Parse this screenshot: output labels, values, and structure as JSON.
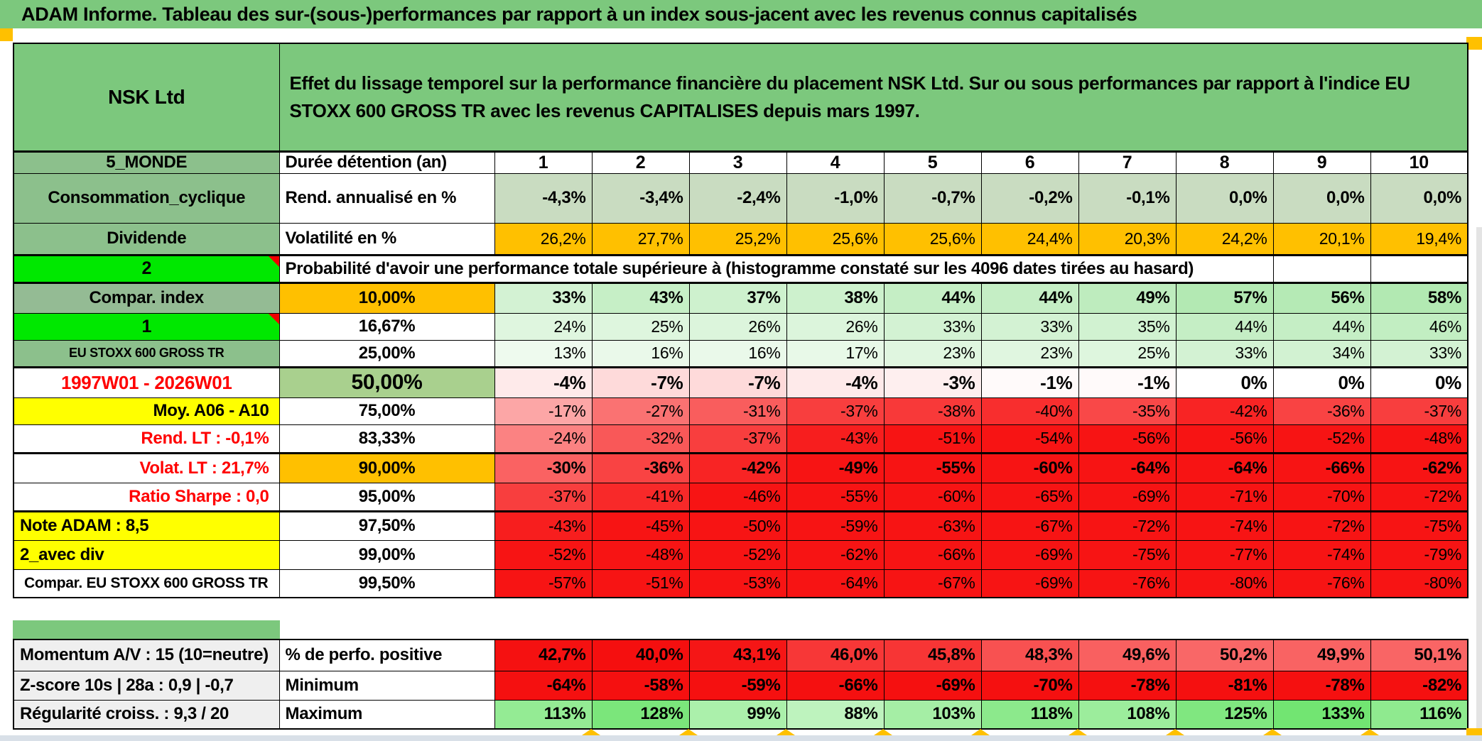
{
  "title": "ADAM Informe. Tableau des sur-(sous-)performances par rapport à un index sous-jacent avec les revenus connus capitalisés",
  "header": {
    "company": "NSK Ltd",
    "description": "Effet du lissage temporel sur la performance financière du placement NSK Ltd. Sur ou sous performances par rapport à l'indice EU STOXX 600 GROSS TR avec les revenus CAPITALISES depuis mars 1997."
  },
  "columns_row": {
    "label": "5_MONDE",
    "metric": "Durée détention (an)",
    "values": [
      "1",
      "2",
      "3",
      "4",
      "5",
      "6",
      "7",
      "8",
      "9",
      "10"
    ]
  },
  "metrics_rows": [
    {
      "label": "Consommation_cyclique",
      "metric": "Rend. annualisé en %",
      "style": "sage",
      "bold": true,
      "values": [
        "-4,3%",
        "-3,4%",
        "-2,4%",
        "-1,0%",
        "-0,7%",
        "-0,2%",
        "-0,1%",
        "0,0%",
        "0,0%",
        "0,0%"
      ]
    },
    {
      "label": "Dividende",
      "metric": "Volatilité en %",
      "style": "orange",
      "bold": false,
      "values": [
        "26,2%",
        "27,7%",
        "25,2%",
        "25,6%",
        "25,6%",
        "24,4%",
        "20,3%",
        "24,2%",
        "20,1%",
        "19,4%"
      ]
    }
  ],
  "probability": {
    "corner_label": "2",
    "caption": "Probabilité d'avoir une performance totale supérieure à (histogramme constaté sur les 4096 dates tirées au hasard)",
    "rows": [
      {
        "label": "Compar. index",
        "label_style": "graygreen",
        "threshold": "10,00%",
        "threshold_style": "orange",
        "bold": true,
        "values": [
          "33%",
          "43%",
          "37%",
          "38%",
          "44%",
          "44%",
          "49%",
          "57%",
          "56%",
          "58%"
        ]
      },
      {
        "label": "1",
        "label_style": "bright",
        "threshold": "16,67%",
        "threshold_style": "plain",
        "bold": false,
        "values": [
          "24%",
          "25%",
          "26%",
          "26%",
          "33%",
          "33%",
          "35%",
          "44%",
          "44%",
          "46%"
        ]
      },
      {
        "label": "EU STOXX 600 GROSS TR",
        "label_style": "labsmall",
        "threshold": "25,00%",
        "threshold_style": "plain",
        "bold": false,
        "values": [
          "13%",
          "16%",
          "16%",
          "17%",
          "23%",
          "23%",
          "25%",
          "33%",
          "34%",
          "33%"
        ]
      },
      {
        "label": "1997W01 - 2026W01",
        "label_style": "redcenter",
        "threshold": "50,00%",
        "threshold_style": "biggreen",
        "bold": true,
        "big": true,
        "values": [
          "-4%",
          "-7%",
          "-7%",
          "-4%",
          "-3%",
          "-1%",
          "-1%",
          "0%",
          "0%",
          "0%"
        ]
      },
      {
        "label": "Moy. A06 - A10",
        "label_style": "yellowright",
        "threshold": "75,00%",
        "threshold_style": "plain",
        "bold": false,
        "values": [
          "-17%",
          "-27%",
          "-31%",
          "-37%",
          "-38%",
          "-40%",
          "-35%",
          "-42%",
          "-36%",
          "-37%"
        ]
      },
      {
        "label": "Rend. LT :   -0,1%",
        "label_style": "redright",
        "threshold": "83,33%",
        "threshold_style": "plain",
        "bold": false,
        "values": [
          "-24%",
          "-32%",
          "-37%",
          "-43%",
          "-51%",
          "-54%",
          "-56%",
          "-56%",
          "-52%",
          "-48%"
        ]
      },
      {
        "label": "Volat. LT :   21,7%",
        "label_style": "redright",
        "threshold": "90,00%",
        "threshold_style": "orange",
        "bold": true,
        "values": [
          "-30%",
          "-36%",
          "-42%",
          "-49%",
          "-55%",
          "-60%",
          "-64%",
          "-64%",
          "-66%",
          "-62%"
        ]
      },
      {
        "label": "Ratio Sharpe :   0,0",
        "label_style": "redright",
        "threshold": "95,00%",
        "threshold_style": "plain",
        "bold": false,
        "values": [
          "-37%",
          "-41%",
          "-46%",
          "-55%",
          "-60%",
          "-65%",
          "-69%",
          "-71%",
          "-70%",
          "-72%"
        ]
      },
      {
        "label": "Note ADAM : 8,5",
        "label_style": "yellowleft",
        "threshold": "97,50%",
        "threshold_style": "plain",
        "bold": false,
        "values": [
          "-43%",
          "-45%",
          "-50%",
          "-59%",
          "-63%",
          "-67%",
          "-72%",
          "-74%",
          "-72%",
          "-75%"
        ]
      },
      {
        "label": "2_avec div",
        "label_style": "yellowleft",
        "threshold": "99,00%",
        "threshold_style": "plain",
        "bold": false,
        "values": [
          "-52%",
          "-48%",
          "-52%",
          "-62%",
          "-66%",
          "-69%",
          "-75%",
          "-77%",
          "-74%",
          "-79%"
        ]
      },
      {
        "label": "Compar. EU STOXX 600 GROSS TR",
        "label_style": "whiteleft",
        "threshold": "99,50%",
        "threshold_style": "plain",
        "bold": false,
        "values": [
          "-57%",
          "-51%",
          "-53%",
          "-64%",
          "-67%",
          "-69%",
          "-76%",
          "-80%",
          "-76%",
          "-80%"
        ]
      }
    ]
  },
  "bottom": {
    "rows": [
      {
        "label": "Momentum A/V : 15 (10=neutre)",
        "metric": "% de perfo. positive",
        "map": "perf",
        "values": [
          "42,7%",
          "40,0%",
          "43,1%",
          "46,0%",
          "45,8%",
          "48,3%",
          "49,6%",
          "50,2%",
          "49,9%",
          "50,1%"
        ]
      },
      {
        "label": "Z-score 10s | 28a : 0,9 | -0,7",
        "metric": "Minimum",
        "map": "min",
        "values": [
          "-64%",
          "-58%",
          "-59%",
          "-66%",
          "-69%",
          "-70%",
          "-78%",
          "-81%",
          "-78%",
          "-82%"
        ]
      },
      {
        "label": "Régularité croiss. : 9,3 / 20",
        "metric": "Maximum",
        "map": "max",
        "values": [
          "113%",
          "128%",
          "99%",
          "88%",
          "103%",
          "118%",
          "108%",
          "125%",
          "133%",
          "116%"
        ]
      }
    ]
  },
  "colors": {
    "green_header": "#7cc87d",
    "green_label": "#8cc08c",
    "gray_green": "#94bb94",
    "sage_values": "#c9dcc1",
    "sage_50_cell": "#a9d08e",
    "bright_green": "#00e800",
    "orange": "#ffc000",
    "yellow": "#ffff00",
    "note_red": "#ff0000",
    "deep_red": "#f51010",
    "max_green_dark": "#6fe46f",
    "bottom_strip": "#d9e0e8"
  }
}
